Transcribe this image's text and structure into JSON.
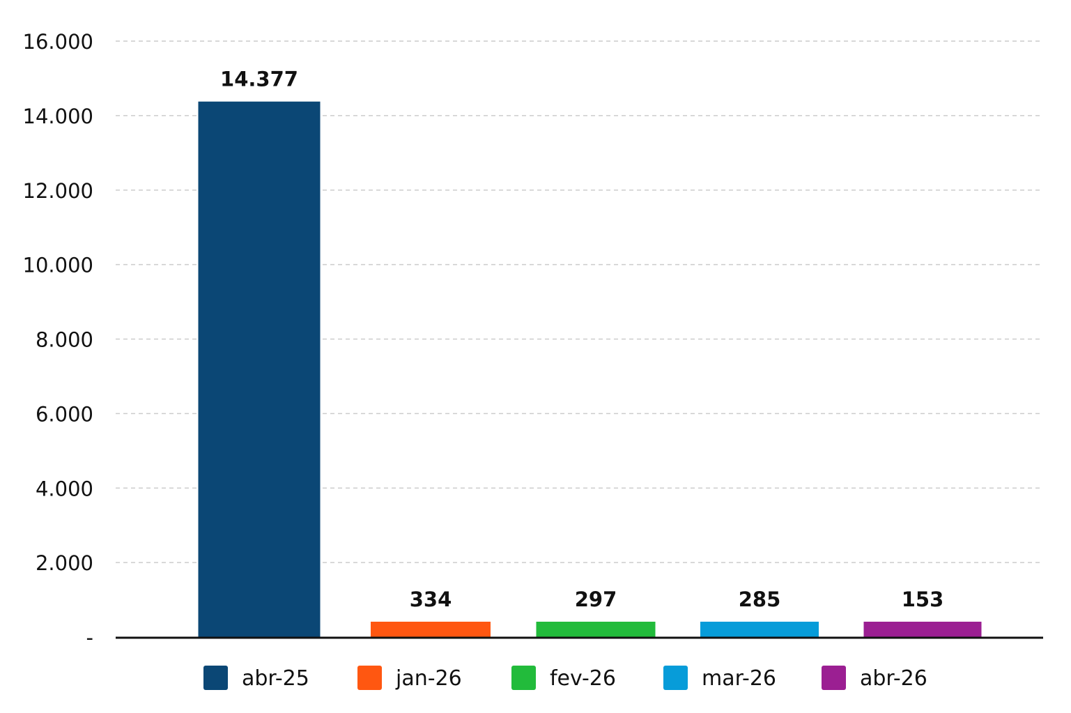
{
  "chart_data": {
    "type": "bar",
    "categories": [
      "abr-25",
      "jan-26",
      "fev-26",
      "mar-26",
      "abr-26"
    ],
    "values": [
      14377,
      334,
      297,
      285,
      153
    ],
    "data_labels": [
      "14.377",
      "334",
      "297",
      "285",
      "153"
    ],
    "colors": [
      "#0b4775",
      "#ff5711",
      "#22bb3b",
      "#079cd9",
      "#9b1f92"
    ],
    "ylim": [
      0,
      16000
    ],
    "yticks": [
      0,
      2000,
      4000,
      6000,
      8000,
      10000,
      12000,
      14000,
      16000
    ],
    "ytick_labels": [
      "-",
      "2.000",
      "4.000",
      "6.000",
      "8.000",
      "10.000",
      "12.000",
      "14.000",
      "16.000"
    ],
    "grid": true,
    "legend_position": "bottom",
    "title": "",
    "xlabel": "",
    "ylabel": ""
  }
}
